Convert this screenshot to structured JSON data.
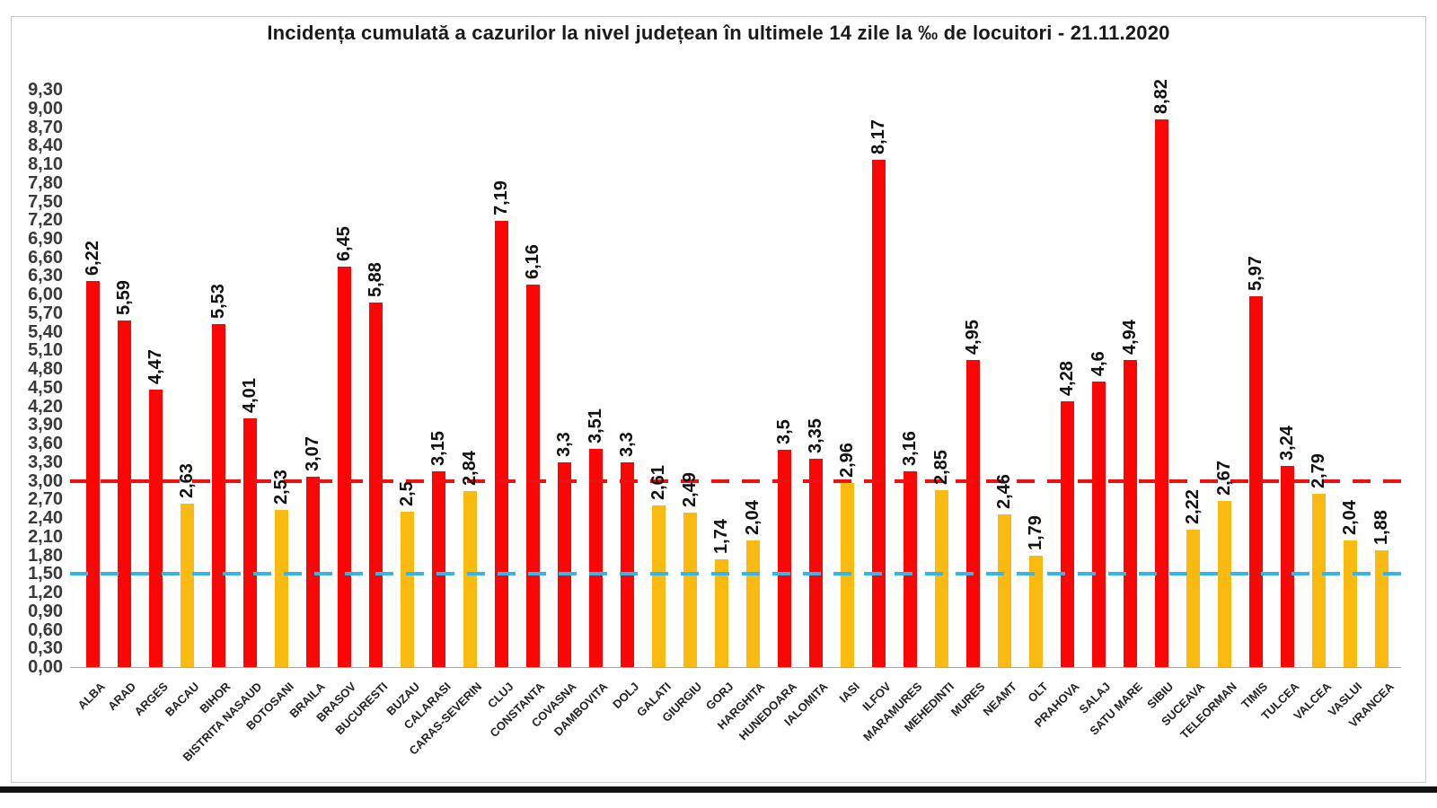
{
  "chart_data": {
    "type": "bar",
    "title": "Incidența cumulată a cazurilor la nivel județean în ultimele 14 zile la ‰ de locuitori - 21.11.2020",
    "categories": [
      "ALBA",
      "ARAD",
      "ARGES",
      "BACAU",
      "BIHOR",
      "BISTRITA NASAUD",
      "BOTOSANI",
      "BRAILA",
      "BRASOV",
      "BUCURESTI",
      "BUZAU",
      "CALARASI",
      "CARAS-SEVERIN",
      "CLUJ",
      "CONSTANTA",
      "COVASNA",
      "DAMBOVITA",
      "DOLJ",
      "GALATI",
      "GIURGIU",
      "GORJ",
      "HARGHITA",
      "HUNEDOARA",
      "IALOMITA",
      "IASI",
      "ILFOV",
      "MARAMURES",
      "MEHEDINTI",
      "MURES",
      "NEAMT",
      "OLT",
      "PRAHOVA",
      "SALAJ",
      "SATU MARE",
      "SIBIU",
      "SUCEAVA",
      "TELEORMAN",
      "TIMIS",
      "TULCEA",
      "VALCEA",
      "VASLUI",
      "VRANCEA"
    ],
    "values": [
      6.22,
      5.59,
      4.47,
      2.63,
      5.53,
      4.01,
      2.53,
      3.07,
      6.45,
      5.88,
      2.5,
      3.15,
      2.84,
      7.19,
      6.16,
      3.3,
      3.51,
      3.3,
      2.61,
      2.49,
      1.74,
      2.04,
      3.5,
      3.35,
      2.96,
      8.17,
      3.16,
      2.85,
      4.95,
      2.46,
      1.79,
      4.28,
      4.6,
      4.94,
      8.82,
      2.22,
      2.67,
      5.97,
      3.24,
      2.79,
      2.04,
      1.88
    ],
    "value_labels": [
      "6,22",
      "5,59",
      "4,47",
      "2,63",
      "5,53",
      "4,01",
      "2,53",
      "3,07",
      "6,45",
      "5,88",
      "2,5",
      "3,15",
      "2,84",
      "7,19",
      "6,16",
      "3,3",
      "3,51",
      "3,3",
      "2,61",
      "2,49",
      "1,74",
      "2,04",
      "3,5",
      "3,35",
      "2,96",
      "8,17",
      "3,16",
      "2,85",
      "4,95",
      "2,46",
      "1,79",
      "4,28",
      "4,6",
      "4,94",
      "8,82",
      "2,22",
      "2,67",
      "5,97",
      "3,24",
      "2,79",
      "2,04",
      "1,88"
    ],
    "bar_colors": [
      "red",
      "red",
      "red",
      "yellow",
      "red",
      "red",
      "yellow",
      "red",
      "red",
      "red",
      "yellow",
      "red",
      "yellow",
      "red",
      "red",
      "red",
      "red",
      "red",
      "yellow",
      "yellow",
      "yellow",
      "yellow",
      "red",
      "red",
      "yellow",
      "red",
      "red",
      "yellow",
      "red",
      "yellow",
      "yellow",
      "red",
      "red",
      "red",
      "red",
      "yellow",
      "yellow",
      "red",
      "red",
      "yellow",
      "yellow",
      "yellow"
    ],
    "yticks": [
      "9,30",
      "9,00",
      "8,70",
      "8,40",
      "8,10",
      "7,80",
      "7,50",
      "7,20",
      "6,90",
      "6,60",
      "6,30",
      "6,00",
      "5,70",
      "5,40",
      "5,10",
      "4,80",
      "4,50",
      "4,20",
      "3,90",
      "3,60",
      "3,30",
      "3,00",
      "2,70",
      "2,40",
      "2,10",
      "1,80",
      "1,50",
      "1,20",
      "0,90",
      "0,60",
      "0,30",
      "0,00"
    ],
    "ylim": [
      0,
      9.3
    ],
    "ytick_step": 0.3,
    "grid": "off",
    "legend": "none",
    "reference_lines": [
      {
        "name": "red-threshold",
        "value": 3.0,
        "style": "dashed",
        "color": "#ed1111"
      },
      {
        "name": "blue-threshold",
        "value": 1.5,
        "style": "dashed",
        "color": "#35b6ea"
      }
    ],
    "colors": {
      "red": "#fb0505",
      "yellow": "#fbba0f",
      "title_text": "#1a1a1a",
      "axis_text": "#3a3a3a"
    }
  }
}
